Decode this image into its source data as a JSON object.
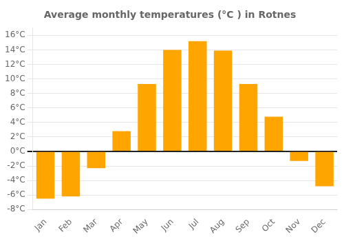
{
  "chart_data": {
    "type": "bar",
    "title": "Average monthly temperatures (°C ) in Rotnes",
    "categories": [
      "Jan",
      "Feb",
      "Mar",
      "Apr",
      "May",
      "Jun",
      "Jul",
      "Aug",
      "Sep",
      "Oct",
      "Nov",
      "Dec"
    ],
    "values": [
      -6.5,
      -6.2,
      -2.3,
      2.8,
      9.3,
      14.0,
      15.2,
      13.9,
      9.3,
      4.8,
      -1.3,
      -4.8
    ],
    "color": "#FFA500",
    "ylim": [
      -8,
      17
    ],
    "yticks": [
      {
        "value": -8,
        "label": "-8°C"
      },
      {
        "value": -6,
        "label": "-6°C"
      },
      {
        "value": -4,
        "label": "-4°C"
      },
      {
        "value": -2,
        "label": "-2°C"
      },
      {
        "value": 0,
        "label": "0°C"
      },
      {
        "value": 2,
        "label": "2°C"
      },
      {
        "value": 4,
        "label": "4°C"
      },
      {
        "value": 6,
        "label": "6°C"
      },
      {
        "value": 8,
        "label": "8°C"
      },
      {
        "value": 10,
        "label": "10°C"
      },
      {
        "value": 12,
        "label": "12°C"
      },
      {
        "value": 14,
        "label": "14°C"
      },
      {
        "value": 16,
        "label": "16°C"
      }
    ],
    "grid": true
  }
}
